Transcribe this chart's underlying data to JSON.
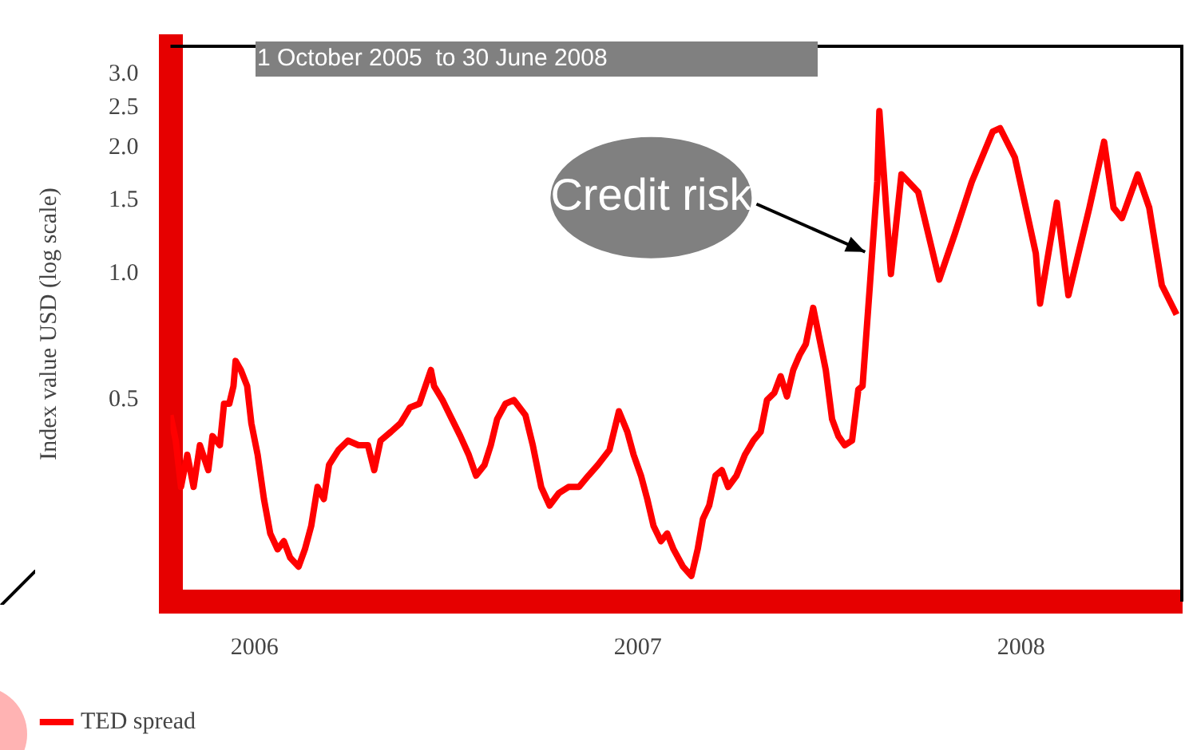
{
  "chart_data": {
    "type": "line",
    "ylabel": "Index value USD (log scale)",
    "log": true,
    "grid": false,
    "marker": "none",
    "legend": "bottom left",
    "xlim": [
      "2005-10-13",
      "2008-06-02"
    ],
    "xticks": [
      {
        "value": "2006-01-01",
        "label": "2006"
      },
      {
        "value": "2007-01-01",
        "label": "2007"
      },
      {
        "value": "2008-01-01",
        "label": "2008"
      }
    ],
    "ylim": [
      0.165,
      3.5
    ],
    "yticks": [
      0.5,
      {
        "value": 1,
        "label": "1.0"
      },
      {
        "value": 1.5,
        "label": "1.5"
      },
      {
        "value": 2,
        "label": "2.0"
      },
      {
        "value": 2.5,
        "label": "2.5"
      },
      {
        "value": 3,
        "label": "3.0"
      }
    ],
    "annotations": [
      "1 October 2005  to 30 June 2008",
      {
        "text": "Credit risk",
        "x": "2007-08-10",
        "y": 1.1
      }
    ],
    "series": [
      {
        "name": "TED spread",
        "color": "#ff0000",
        "x": [
          "2005-10-13",
          "2005-10-18",
          "2005-10-23",
          "2005-10-29",
          "2005-11-04",
          "2005-11-10",
          "2005-11-18",
          "2005-11-22",
          "2005-11-29",
          "2005-12-03",
          "2005-12-08",
          "2005-12-12",
          "2005-12-14",
          "2005-12-19",
          "2005-12-25",
          "2005-12-29",
          "2006-01-04",
          "2006-01-10",
          "2006-01-16",
          "2006-01-23",
          "2006-01-29",
          "2006-02-04",
          "2006-02-12",
          "2006-02-18",
          "2006-02-24",
          "2006-03-02",
          "2006-03-08",
          "2006-03-13",
          "2006-03-22",
          "2006-03-31",
          "2006-04-10",
          "2006-04-19",
          "2006-04-25",
          "2006-05-01",
          "2006-05-11",
          "2006-05-20",
          "2006-05-29",
          "2006-06-07",
          "2006-06-18",
          "2006-06-21",
          "2006-06-29",
          "2006-07-08",
          "2006-07-16",
          "2006-07-24",
          "2006-07-31",
          "2006-08-08",
          "2006-08-14",
          "2006-08-20",
          "2006-08-28",
          "2006-09-05",
          "2006-09-16",
          "2006-09-23",
          "2006-10-01",
          "2006-10-09",
          "2006-10-18",
          "2006-10-27",
          "2006-11-06",
          "2006-11-15",
          "2006-11-24",
          "2006-12-05",
          "2006-12-14",
          "2006-12-22",
          "2006-12-28",
          "2007-01-04",
          "2007-01-10",
          "2007-01-16",
          "2007-01-23",
          "2007-01-29",
          "2007-02-04",
          "2007-02-13",
          "2007-02-21",
          "2007-02-27",
          "2007-03-04",
          "2007-03-10",
          "2007-03-16",
          "2007-03-22",
          "2007-03-28",
          "2007-04-05",
          "2007-04-13",
          "2007-04-21",
          "2007-04-28",
          "2007-05-04",
          "2007-05-11",
          "2007-05-17",
          "2007-05-23",
          "2007-05-29",
          "2007-06-04",
          "2007-06-10",
          "2007-06-17",
          "2007-06-23",
          "2007-06-29",
          "2007-07-05",
          "2007-07-11",
          "2007-07-17",
          "2007-07-24",
          "2007-07-30",
          "2007-08-03",
          "2007-08-10",
          "2007-08-17",
          "2007-08-19",
          "2007-08-30",
          "2007-09-09",
          "2007-09-25",
          "2007-10-15",
          "2007-10-30",
          "2007-11-15",
          "2007-12-05",
          "2007-12-12",
          "2007-12-26",
          "2008-01-15",
          "2008-01-19",
          "2008-02-04",
          "2008-02-15",
          "2008-03-06",
          "2008-03-20",
          "2008-03-29",
          "2008-04-06",
          "2008-04-21",
          "2008-05-02",
          "2008-05-14",
          "2008-05-28"
        ],
        "values": [
          0.46,
          0.4,
          0.31,
          0.37,
          0.31,
          0.39,
          0.34,
          0.41,
          0.39,
          0.49,
          0.49,
          0.54,
          0.62,
          0.59,
          0.54,
          0.44,
          0.37,
          0.29,
          0.24,
          0.22,
          0.23,
          0.21,
          0.2,
          0.22,
          0.25,
          0.31,
          0.29,
          0.35,
          0.38,
          0.4,
          0.39,
          0.39,
          0.34,
          0.4,
          0.42,
          0.44,
          0.48,
          0.49,
          0.59,
          0.54,
          0.5,
          0.45,
          0.41,
          0.37,
          0.33,
          0.35,
          0.39,
          0.45,
          0.49,
          0.5,
          0.46,
          0.39,
          0.31,
          0.28,
          0.3,
          0.31,
          0.31,
          0.33,
          0.35,
          0.38,
          0.47,
          0.42,
          0.37,
          0.33,
          0.29,
          0.25,
          0.23,
          0.24,
          0.22,
          0.2,
          0.19,
          0.22,
          0.26,
          0.28,
          0.33,
          0.34,
          0.31,
          0.33,
          0.37,
          0.4,
          0.42,
          0.5,
          0.52,
          0.57,
          0.51,
          0.59,
          0.64,
          0.68,
          0.83,
          0.7,
          0.59,
          0.45,
          0.41,
          0.39,
          0.4,
          0.53,
          0.54,
          0.94,
          1.66,
          2.45,
          1.0,
          1.73,
          1.57,
          0.97,
          1.25,
          1.66,
          2.19,
          2.23,
          1.9,
          1.12,
          0.85,
          1.48,
          0.89,
          1.44,
          2.07,
          1.44,
          1.36,
          1.73,
          1.44,
          0.94,
          0.8
        ]
      }
    ]
  }
}
